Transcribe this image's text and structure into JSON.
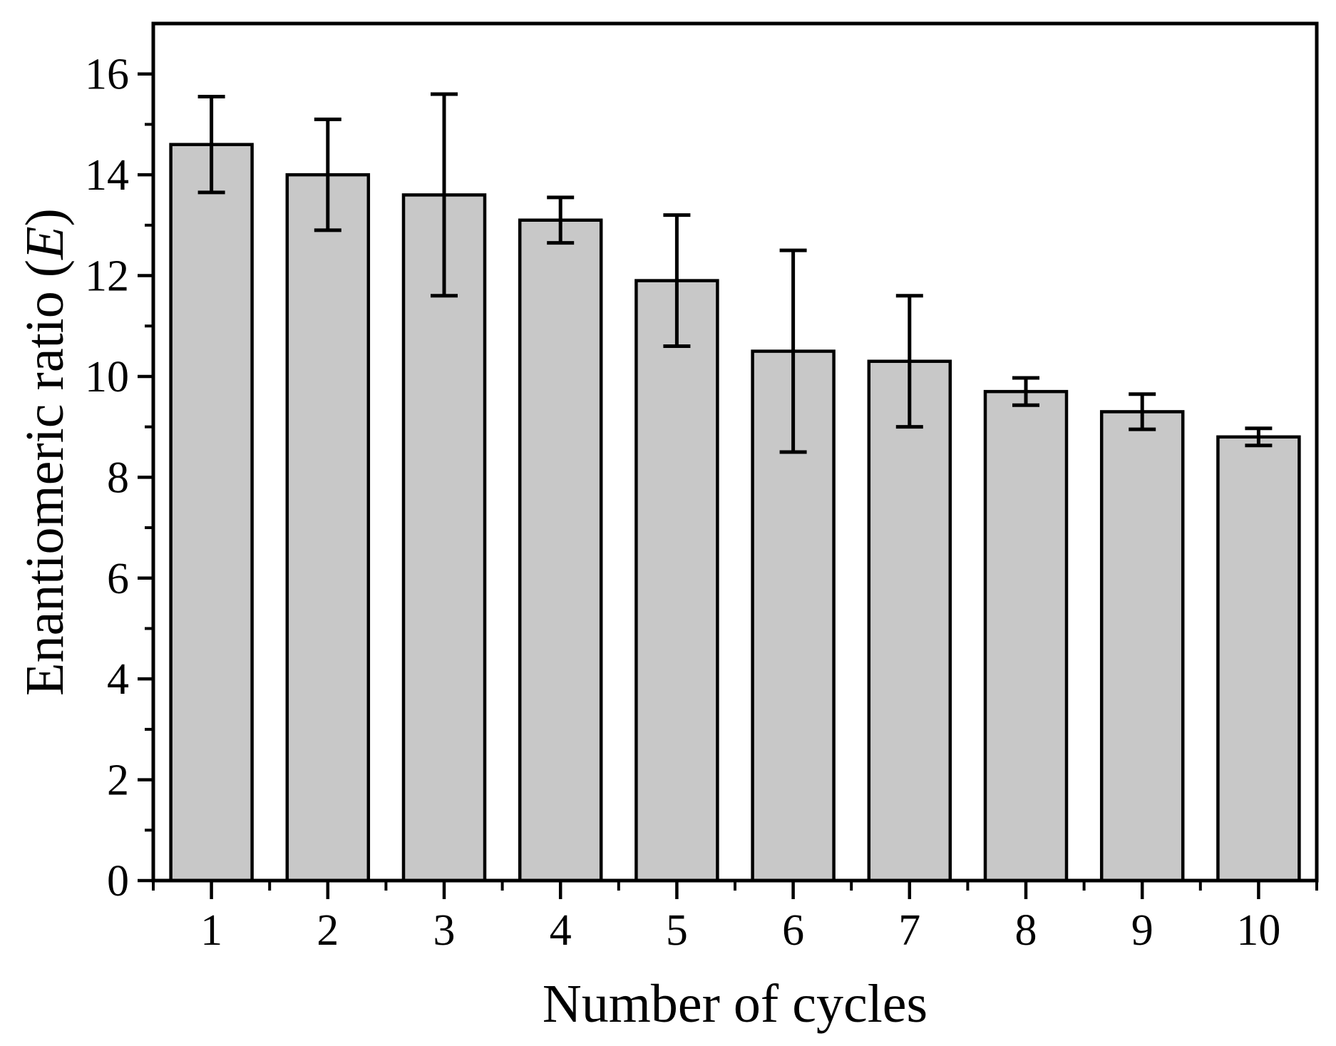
{
  "figure": {
    "background_color": "#ffffff",
    "description": "Bar chart with error bars showing enantiomeric ratio versus number of cycles"
  },
  "chart_data": {
    "type": "bar",
    "title": "",
    "xlabel": "Number of cycles",
    "ylabel": "Enantiomeric ratio (E)",
    "ylabel_parts": {
      "prefix": "Enantiomeric ratio (",
      "italic": "E",
      "suffix": ")"
    },
    "categories": [
      "1",
      "2",
      "3",
      "4",
      "5",
      "6",
      "7",
      "8",
      "9",
      "10"
    ],
    "values": [
      14.6,
      14.0,
      13.6,
      13.1,
      11.9,
      10.5,
      10.3,
      9.7,
      9.3,
      8.8
    ],
    "error_bars": [
      0.95,
      1.1,
      2.0,
      0.45,
      1.3,
      2.0,
      1.3,
      0.27,
      0.35,
      0.17
    ],
    "ylim": [
      0,
      17
    ],
    "y_major_tick_values": [
      0,
      2,
      4,
      6,
      8,
      10,
      12,
      14,
      16
    ],
    "y_major_tick_labels": [
      "0",
      "2",
      "4",
      "6",
      "8",
      "10",
      "12",
      "14",
      "16"
    ],
    "y_minor_tick_values": [
      1,
      3,
      5,
      7,
      9,
      11,
      13,
      15
    ],
    "grid": "off",
    "legend": "none",
    "frame": "full-box",
    "bar_fill_color": "#c8c8c8",
    "bar_edge_color": "#000000",
    "error_bar_color": "#000000",
    "axis_color": "#000000"
  }
}
